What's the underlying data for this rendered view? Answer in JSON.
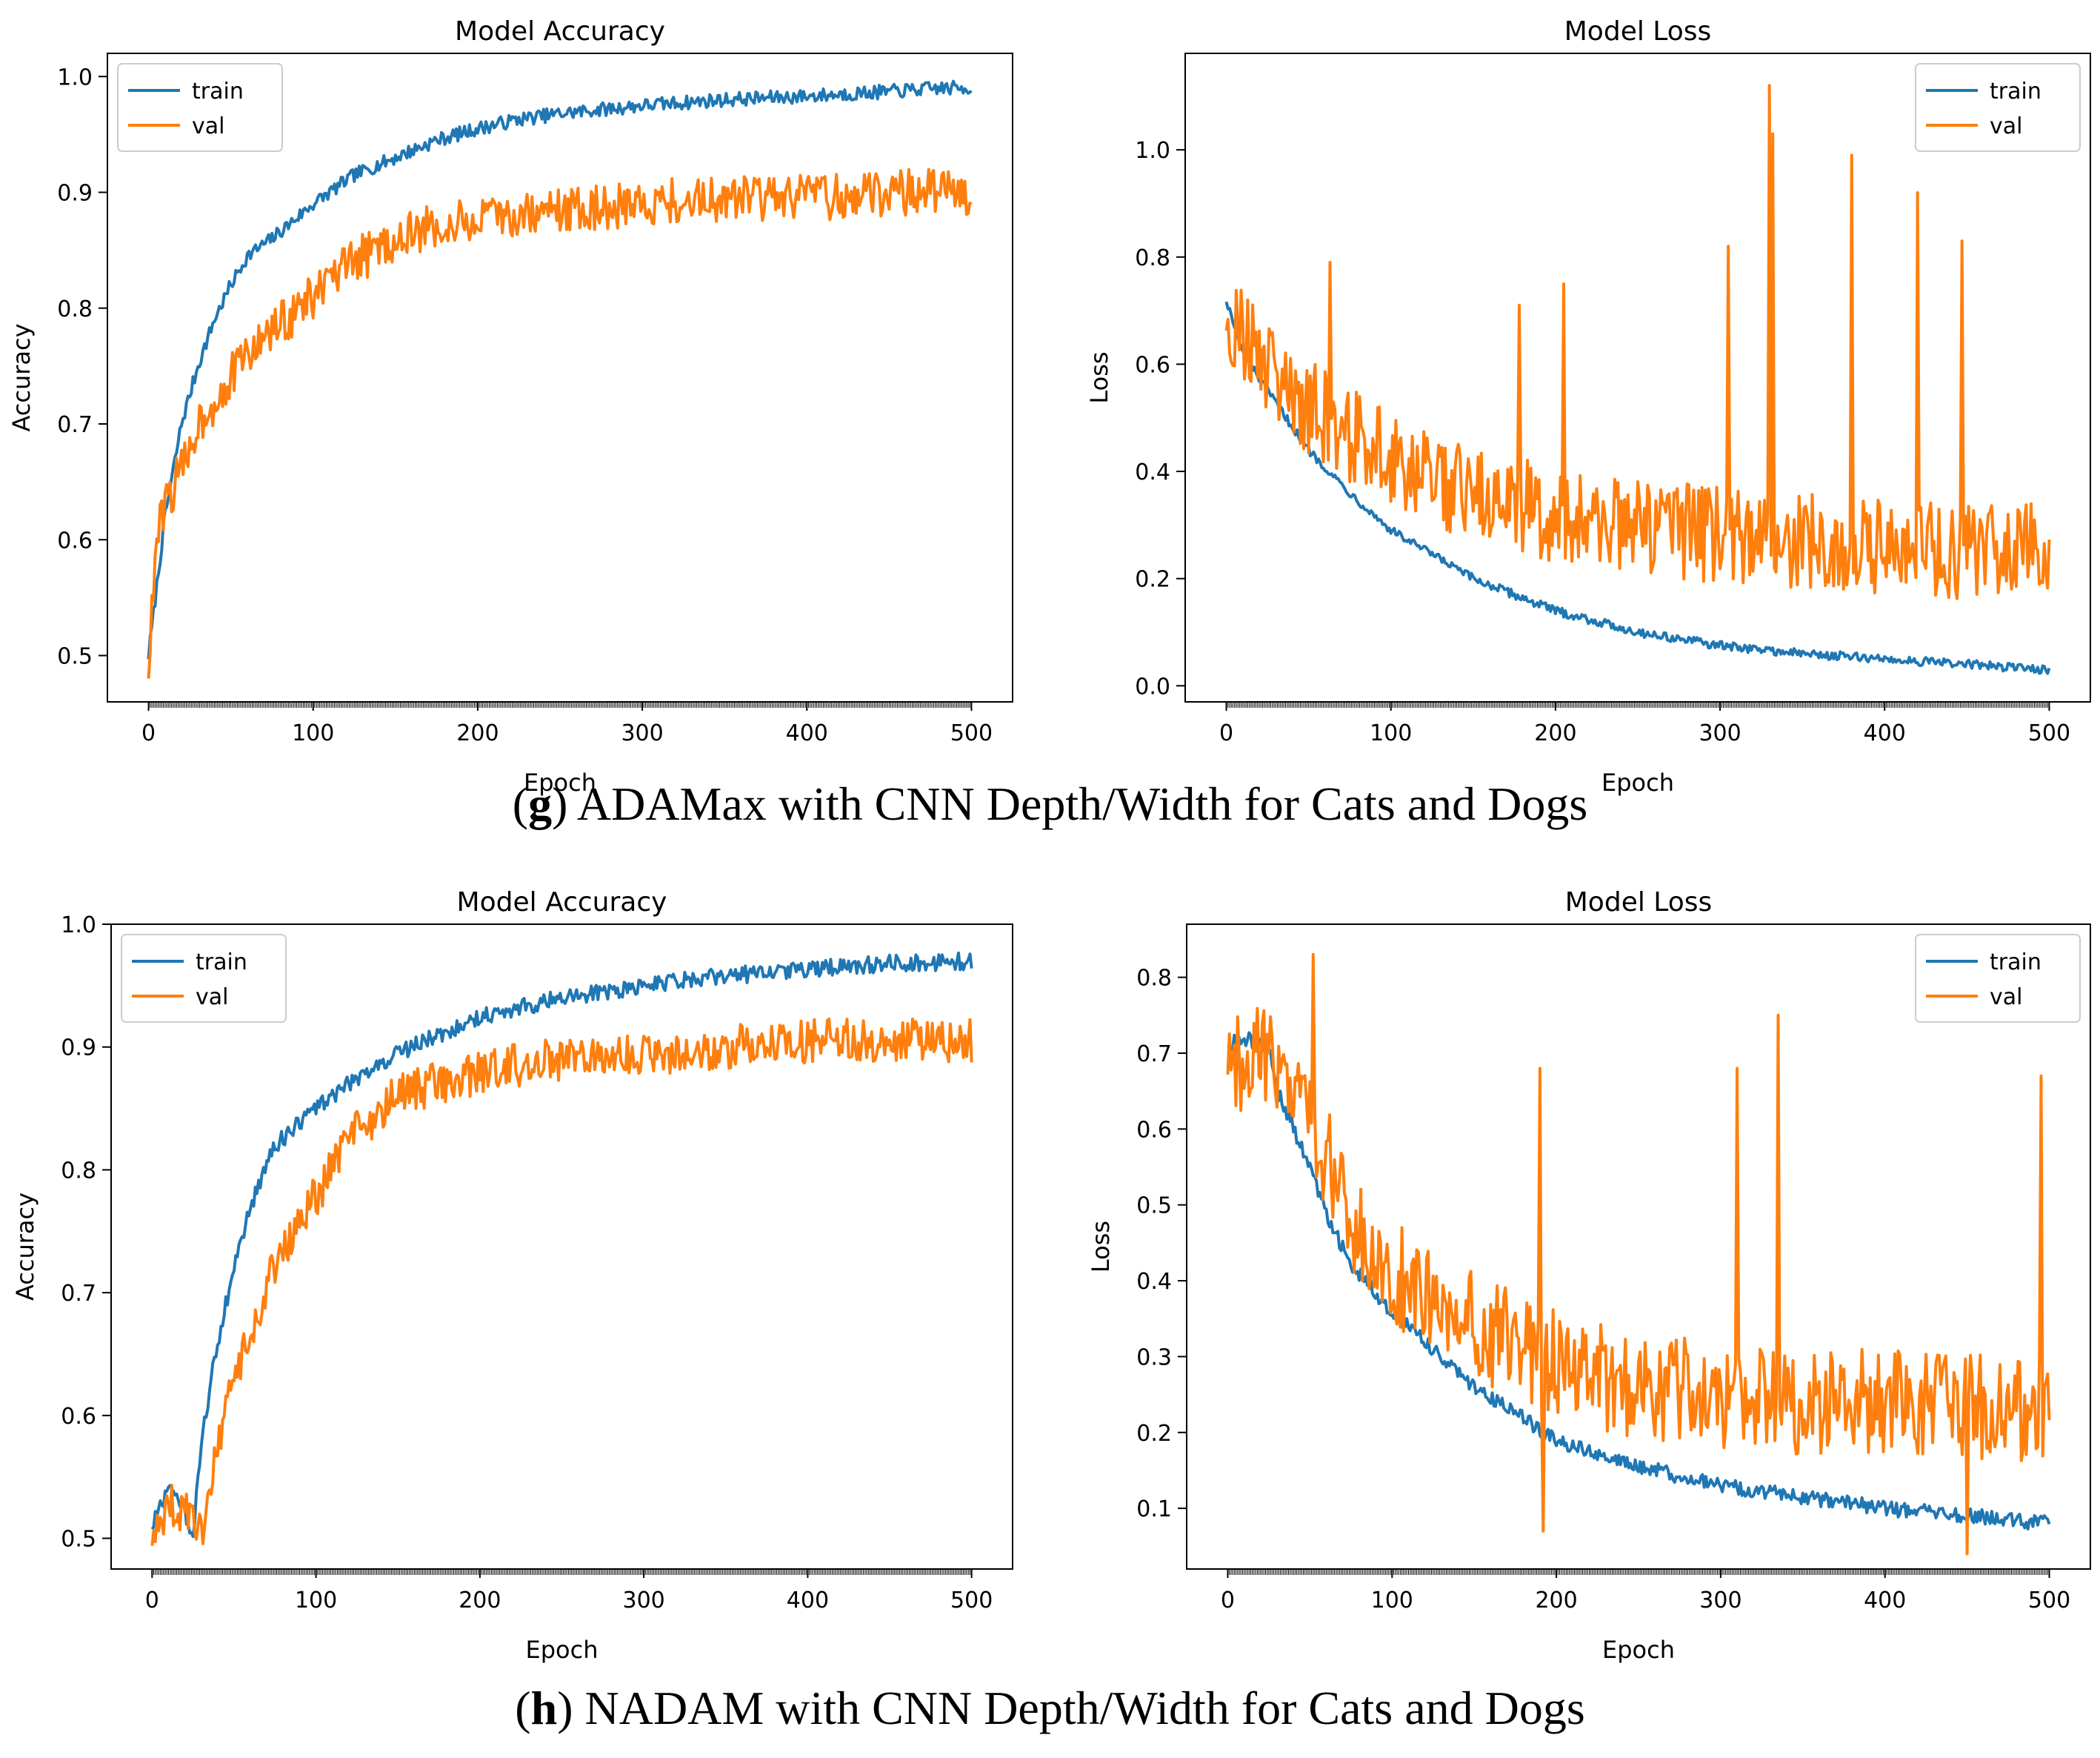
{
  "colors": {
    "train": "#1f77b4",
    "val": "#ff7f0e",
    "axis": "#000000"
  },
  "captions": {
    "g": {
      "letter": "g",
      "text": "ADAMax with CNN Depth/Width for Cats and Dogs"
    },
    "h": {
      "letter": "h",
      "text": "NADAM with CNN Depth/Width for Cats and Dogs"
    }
  },
  "chart_data": [
    {
      "id": "g-acc",
      "type": "line",
      "title": "Model Accuracy",
      "xlabel": "Epoch",
      "ylabel": "Accuracy",
      "xlim": [
        -25,
        525
      ],
      "ylim": [
        0.46,
        1.02
      ],
      "xticks": [
        0,
        100,
        200,
        300,
        400,
        500
      ],
      "yticks": [
        0.5,
        0.6,
        0.7,
        0.8,
        0.9,
        1.0
      ],
      "ytick_decimals": 1,
      "legend": "top-left",
      "series": [
        {
          "name": "train",
          "x": [
            0,
            5,
            10,
            20,
            30,
            40,
            50,
            60,
            75,
            100,
            125,
            150,
            175,
            200,
            225,
            250,
            300,
            350,
            400,
            450,
            480,
            500
          ],
          "values": [
            0.5,
            0.56,
            0.62,
            0.7,
            0.75,
            0.79,
            0.82,
            0.845,
            0.86,
            0.89,
            0.915,
            0.93,
            0.945,
            0.955,
            0.963,
            0.968,
            0.975,
            0.98,
            0.983,
            0.987,
            0.99,
            0.99
          ],
          "noise": 0.006
        },
        {
          "name": "val",
          "x": [
            0,
            5,
            10,
            20,
            30,
            40,
            50,
            60,
            75,
            100,
            125,
            150,
            175,
            200,
            225,
            250,
            300,
            350,
            400,
            450,
            500
          ],
          "values": [
            0.49,
            0.6,
            0.63,
            0.66,
            0.7,
            0.72,
            0.74,
            0.76,
            0.78,
            0.81,
            0.84,
            0.86,
            0.87,
            0.875,
            0.88,
            0.885,
            0.89,
            0.895,
            0.895,
            0.9,
            0.9
          ],
          "noise": 0.02
        }
      ]
    },
    {
      "id": "g-loss",
      "type": "line",
      "title": "Model Loss",
      "xlabel": "Epoch",
      "ylabel": "Loss",
      "xlim": [
        -25,
        525
      ],
      "ylim": [
        -0.03,
        1.18
      ],
      "xticks": [
        0,
        100,
        200,
        300,
        400,
        500
      ],
      "yticks": [
        0.0,
        0.2,
        0.4,
        0.6,
        0.8,
        1.0
      ],
      "ytick_decimals": 1,
      "legend": "top-right",
      "series": [
        {
          "name": "train",
          "x": [
            0,
            10,
            25,
            50,
            75,
            100,
            150,
            200,
            250,
            300,
            350,
            400,
            450,
            500
          ],
          "values": [
            0.72,
            0.62,
            0.55,
            0.44,
            0.36,
            0.29,
            0.2,
            0.14,
            0.1,
            0.075,
            0.06,
            0.05,
            0.04,
            0.03
          ],
          "noise": 0.008
        },
        {
          "name": "val",
          "x": [
            0,
            25,
            50,
            75,
            100,
            150,
            200,
            250,
            300,
            350,
            400,
            450,
            500
          ],
          "values": [
            0.7,
            0.6,
            0.52,
            0.47,
            0.42,
            0.36,
            0.32,
            0.3,
            0.28,
            0.27,
            0.26,
            0.25,
            0.25
          ],
          "noise": 0.09,
          "spikes": [
            [
              63,
              0.79
            ],
            [
              178,
              0.71
            ],
            [
              205,
              0.75
            ],
            [
              305,
              0.82
            ],
            [
              330,
              1.12
            ],
            [
              332,
              1.03
            ],
            [
              380,
              0.99
            ],
            [
              420,
              0.92
            ],
            [
              447,
              0.83
            ]
          ]
        }
      ]
    },
    {
      "id": "h-acc",
      "type": "line",
      "title": "Model Accuracy",
      "xlabel": "Epoch",
      "ylabel": "Accuracy",
      "xlim": [
        -25,
        525
      ],
      "ylim": [
        0.475,
        1.0
      ],
      "xticks": [
        0,
        100,
        200,
        300,
        400,
        500
      ],
      "yticks": [
        0.5,
        0.6,
        0.7,
        0.8,
        0.9,
        1.0
      ],
      "ytick_decimals": 1,
      "legend": "top-left",
      "series": [
        {
          "name": "train",
          "x": [
            0,
            10,
            20,
            25,
            30,
            40,
            50,
            60,
            75,
            100,
            125,
            150,
            175,
            200,
            250,
            300,
            350,
            400,
            450,
            500
          ],
          "values": [
            0.51,
            0.54,
            0.52,
            0.5,
            0.58,
            0.66,
            0.72,
            0.77,
            0.82,
            0.85,
            0.875,
            0.895,
            0.91,
            0.925,
            0.94,
            0.95,
            0.958,
            0.963,
            0.968,
            0.97
          ],
          "noise": 0.007
        },
        {
          "name": "val",
          "x": [
            0,
            10,
            20,
            30,
            40,
            50,
            60,
            75,
            100,
            125,
            150,
            175,
            200,
            250,
            300,
            350,
            400,
            450,
            500
          ],
          "values": [
            0.5,
            0.53,
            0.52,
            0.5,
            0.57,
            0.63,
            0.67,
            0.72,
            0.78,
            0.83,
            0.86,
            0.87,
            0.88,
            0.89,
            0.895,
            0.9,
            0.905,
            0.905,
            0.905
          ],
          "noise": 0.018
        }
      ]
    },
    {
      "id": "h-loss",
      "type": "line",
      "title": "Model Loss",
      "xlabel": "Epoch",
      "ylabel": "Loss",
      "xlim": [
        -25,
        525
      ],
      "ylim": [
        0.02,
        0.87
      ],
      "xticks": [
        0,
        100,
        200,
        300,
        400,
        500
      ],
      "yticks": [
        0.1,
        0.2,
        0.3,
        0.4,
        0.5,
        0.6,
        0.7,
        0.8
      ],
      "ytick_decimals": 1,
      "legend": "top-right",
      "series": [
        {
          "name": "train",
          "x": [
            0,
            10,
            25,
            30,
            40,
            50,
            60,
            75,
            100,
            150,
            200,
            250,
            300,
            350,
            400,
            450,
            500
          ],
          "values": [
            0.71,
            0.72,
            0.71,
            0.65,
            0.6,
            0.55,
            0.49,
            0.42,
            0.36,
            0.26,
            0.19,
            0.155,
            0.13,
            0.115,
            0.1,
            0.09,
            0.08
          ],
          "noise": 0.01
        },
        {
          "name": "val",
          "x": [
            0,
            25,
            35,
            50,
            60,
            75,
            100,
            150,
            200,
            250,
            300,
            350,
            400,
            450,
            500
          ],
          "values": [
            0.69,
            0.69,
            0.64,
            0.61,
            0.56,
            0.48,
            0.41,
            0.34,
            0.29,
            0.26,
            0.25,
            0.24,
            0.24,
            0.235,
            0.23
          ],
          "noise": 0.07,
          "spikes": [
            [
              52,
              0.83
            ],
            [
              190,
              0.68
            ],
            [
              192,
              0.07
            ],
            [
              310,
              0.68
            ],
            [
              335,
              0.75
            ],
            [
              450,
              0.04
            ],
            [
              495,
              0.67
            ]
          ]
        }
      ]
    }
  ]
}
